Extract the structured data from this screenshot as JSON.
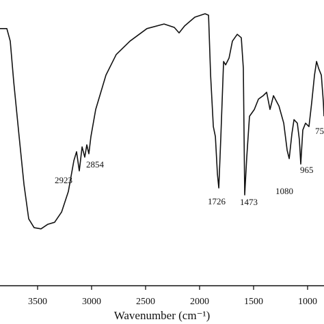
{
  "chart_data": {
    "type": "line",
    "x_label": "Wavenumber (cm⁻¹)",
    "xlim": [
      3848,
      848
    ],
    "xticks": [
      3500,
      3000,
      2500,
      2000,
      1500,
      1000
    ],
    "ylim": [
      0,
      100
    ],
    "annotations": [
      "2923",
      "2854",
      "1726",
      "1473",
      "1080",
      "965",
      "75"
    ],
    "series": [
      {
        "color": "#111111",
        "x": [
          3848,
          3785,
          3753,
          3721,
          3671,
          3626,
          3582,
          3532,
          3468,
          3405,
          3342,
          3278,
          3215,
          3164,
          3139,
          3114,
          3088,
          3063,
          3044,
          3025,
          3006,
          2962,
          2867,
          2772,
          2645,
          2487,
          2329,
          2234,
          2190,
          2139,
          2044,
          1949,
          1917,
          1898,
          1873,
          1854,
          1835,
          1822,
          1803,
          1778,
          1759,
          1727,
          1696,
          1651,
          1614,
          1595,
          1582,
          1563,
          1538,
          1493,
          1455,
          1411,
          1379,
          1348,
          1316,
          1265,
          1221,
          1189,
          1170,
          1145,
          1126,
          1095,
          1076,
          1063,
          1044,
          1019,
          987,
          962,
          936,
          917,
          898,
          873,
          854,
          848
        ],
        "values": [
          90.0,
          90.0,
          85.6,
          71.3,
          52.2,
          35.4,
          23.4,
          20.3,
          19.9,
          21.5,
          22.2,
          25.8,
          33.0,
          43.8,
          46.9,
          40.2,
          48.6,
          45.0,
          49.3,
          46.2,
          52.2,
          61.7,
          73.7,
          80.9,
          85.6,
          90.0,
          91.6,
          90.4,
          88.5,
          90.9,
          94.0,
          95.2,
          94.7,
          73.7,
          55.7,
          52.2,
          39.0,
          34.2,
          52.2,
          78.5,
          77.3,
          79.7,
          85.6,
          88.0,
          86.8,
          76.1,
          31.8,
          45.0,
          59.3,
          61.7,
          65.3,
          66.5,
          67.7,
          61.7,
          66.5,
          62.9,
          56.9,
          47.4,
          44.5,
          53.3,
          58.1,
          56.9,
          51.0,
          42.6,
          54.5,
          56.9,
          55.7,
          64.1,
          73.7,
          78.5,
          76.1,
          73.7,
          64.1,
          59.3
        ]
      }
    ]
  }
}
